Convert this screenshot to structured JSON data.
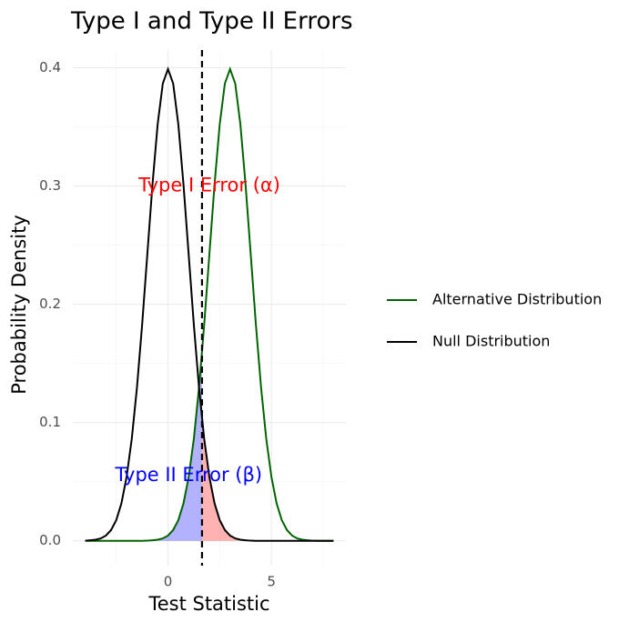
{
  "chart_data": {
    "type": "line",
    "title": "Type I and Type II Errors",
    "x_label": "Test Statistic",
    "y_label": "Probability Density",
    "x": [
      -4,
      -3.75,
      -3.5,
      -3.25,
      -3,
      -2.75,
      -2.5,
      -2.25,
      -2,
      -1.75,
      -1.5,
      -1.25,
      -1,
      -0.75,
      -0.5,
      -0.25,
      0,
      0.25,
      0.5,
      0.75,
      1,
      1.25,
      1.5,
      1.75,
      2,
      2.25,
      2.5,
      2.75,
      3,
      3.25,
      3.5,
      3.75,
      4,
      4.25,
      4.5,
      4.75,
      5,
      5.25,
      5.5,
      5.75,
      6,
      6.25,
      6.5,
      6.75,
      7,
      7.25,
      7.5,
      7.75,
      8
    ],
    "series": [
      {
        "name": "Alternative Distribution",
        "color": "#006400",
        "values": [
          0,
          0,
          0,
          0,
          0,
          0,
          0,
          0,
          0,
          0,
          0,
          0,
          0.0001,
          0.0004,
          0.0009,
          0.002,
          0.0044,
          0.0091,
          0.0175,
          0.0317,
          0.054,
          0.0863,
          0.1295,
          0.1826,
          0.242,
          0.3011,
          0.3521,
          0.3867,
          0.3989,
          0.3867,
          0.3521,
          0.3011,
          0.242,
          0.1826,
          0.1295,
          0.0863,
          0.054,
          0.0317,
          0.0175,
          0.0091,
          0.0044,
          0.002,
          0.0009,
          0.0004,
          0.0001,
          0,
          0,
          0,
          0
        ]
      },
      {
        "name": "Null Distribution",
        "color": "#000000",
        "values": [
          0.0001,
          0.0004,
          0.0009,
          0.002,
          0.0044,
          0.0091,
          0.0175,
          0.0317,
          0.054,
          0.0863,
          0.1295,
          0.1826,
          0.242,
          0.3011,
          0.3521,
          0.3867,
          0.3989,
          0.3867,
          0.3521,
          0.3011,
          0.242,
          0.1826,
          0.1295,
          0.0863,
          0.054,
          0.0317,
          0.0175,
          0.0091,
          0.0044,
          0.002,
          0.0009,
          0.0004,
          0.0001,
          0,
          0,
          0,
          0,
          0,
          0,
          0,
          0,
          0,
          0,
          0,
          0,
          0,
          0,
          0,
          0
        ]
      }
    ],
    "vline": 1.645,
    "shading": [
      {
        "series": 1,
        "side": "right",
        "color": "#ff0000",
        "opacity": 0.3
      },
      {
        "series": 0,
        "side": "left",
        "color": "#0000ff",
        "opacity": 0.3
      }
    ],
    "annotations": [
      {
        "text": "Type I Error (α)",
        "x": 2,
        "y": 0.3,
        "color": "#ff0000"
      },
      {
        "text": "Type II Error (β)",
        "x": 1,
        "y": 0.055,
        "color": "#0000ff"
      }
    ],
    "xlim": [
      -4.6,
      8.6
    ],
    "ylim": [
      -0.021,
      0.415
    ],
    "xticks": [
      0,
      5
    ],
    "yticks": [
      0.0,
      0.1,
      0.2,
      0.3,
      0.4
    ],
    "x_minor_ticks": [
      -2.5,
      2.5,
      7.5
    ],
    "y_minor_ticks": [
      0.05,
      0.15,
      0.25,
      0.35
    ],
    "grid": true,
    "legend": "right"
  }
}
